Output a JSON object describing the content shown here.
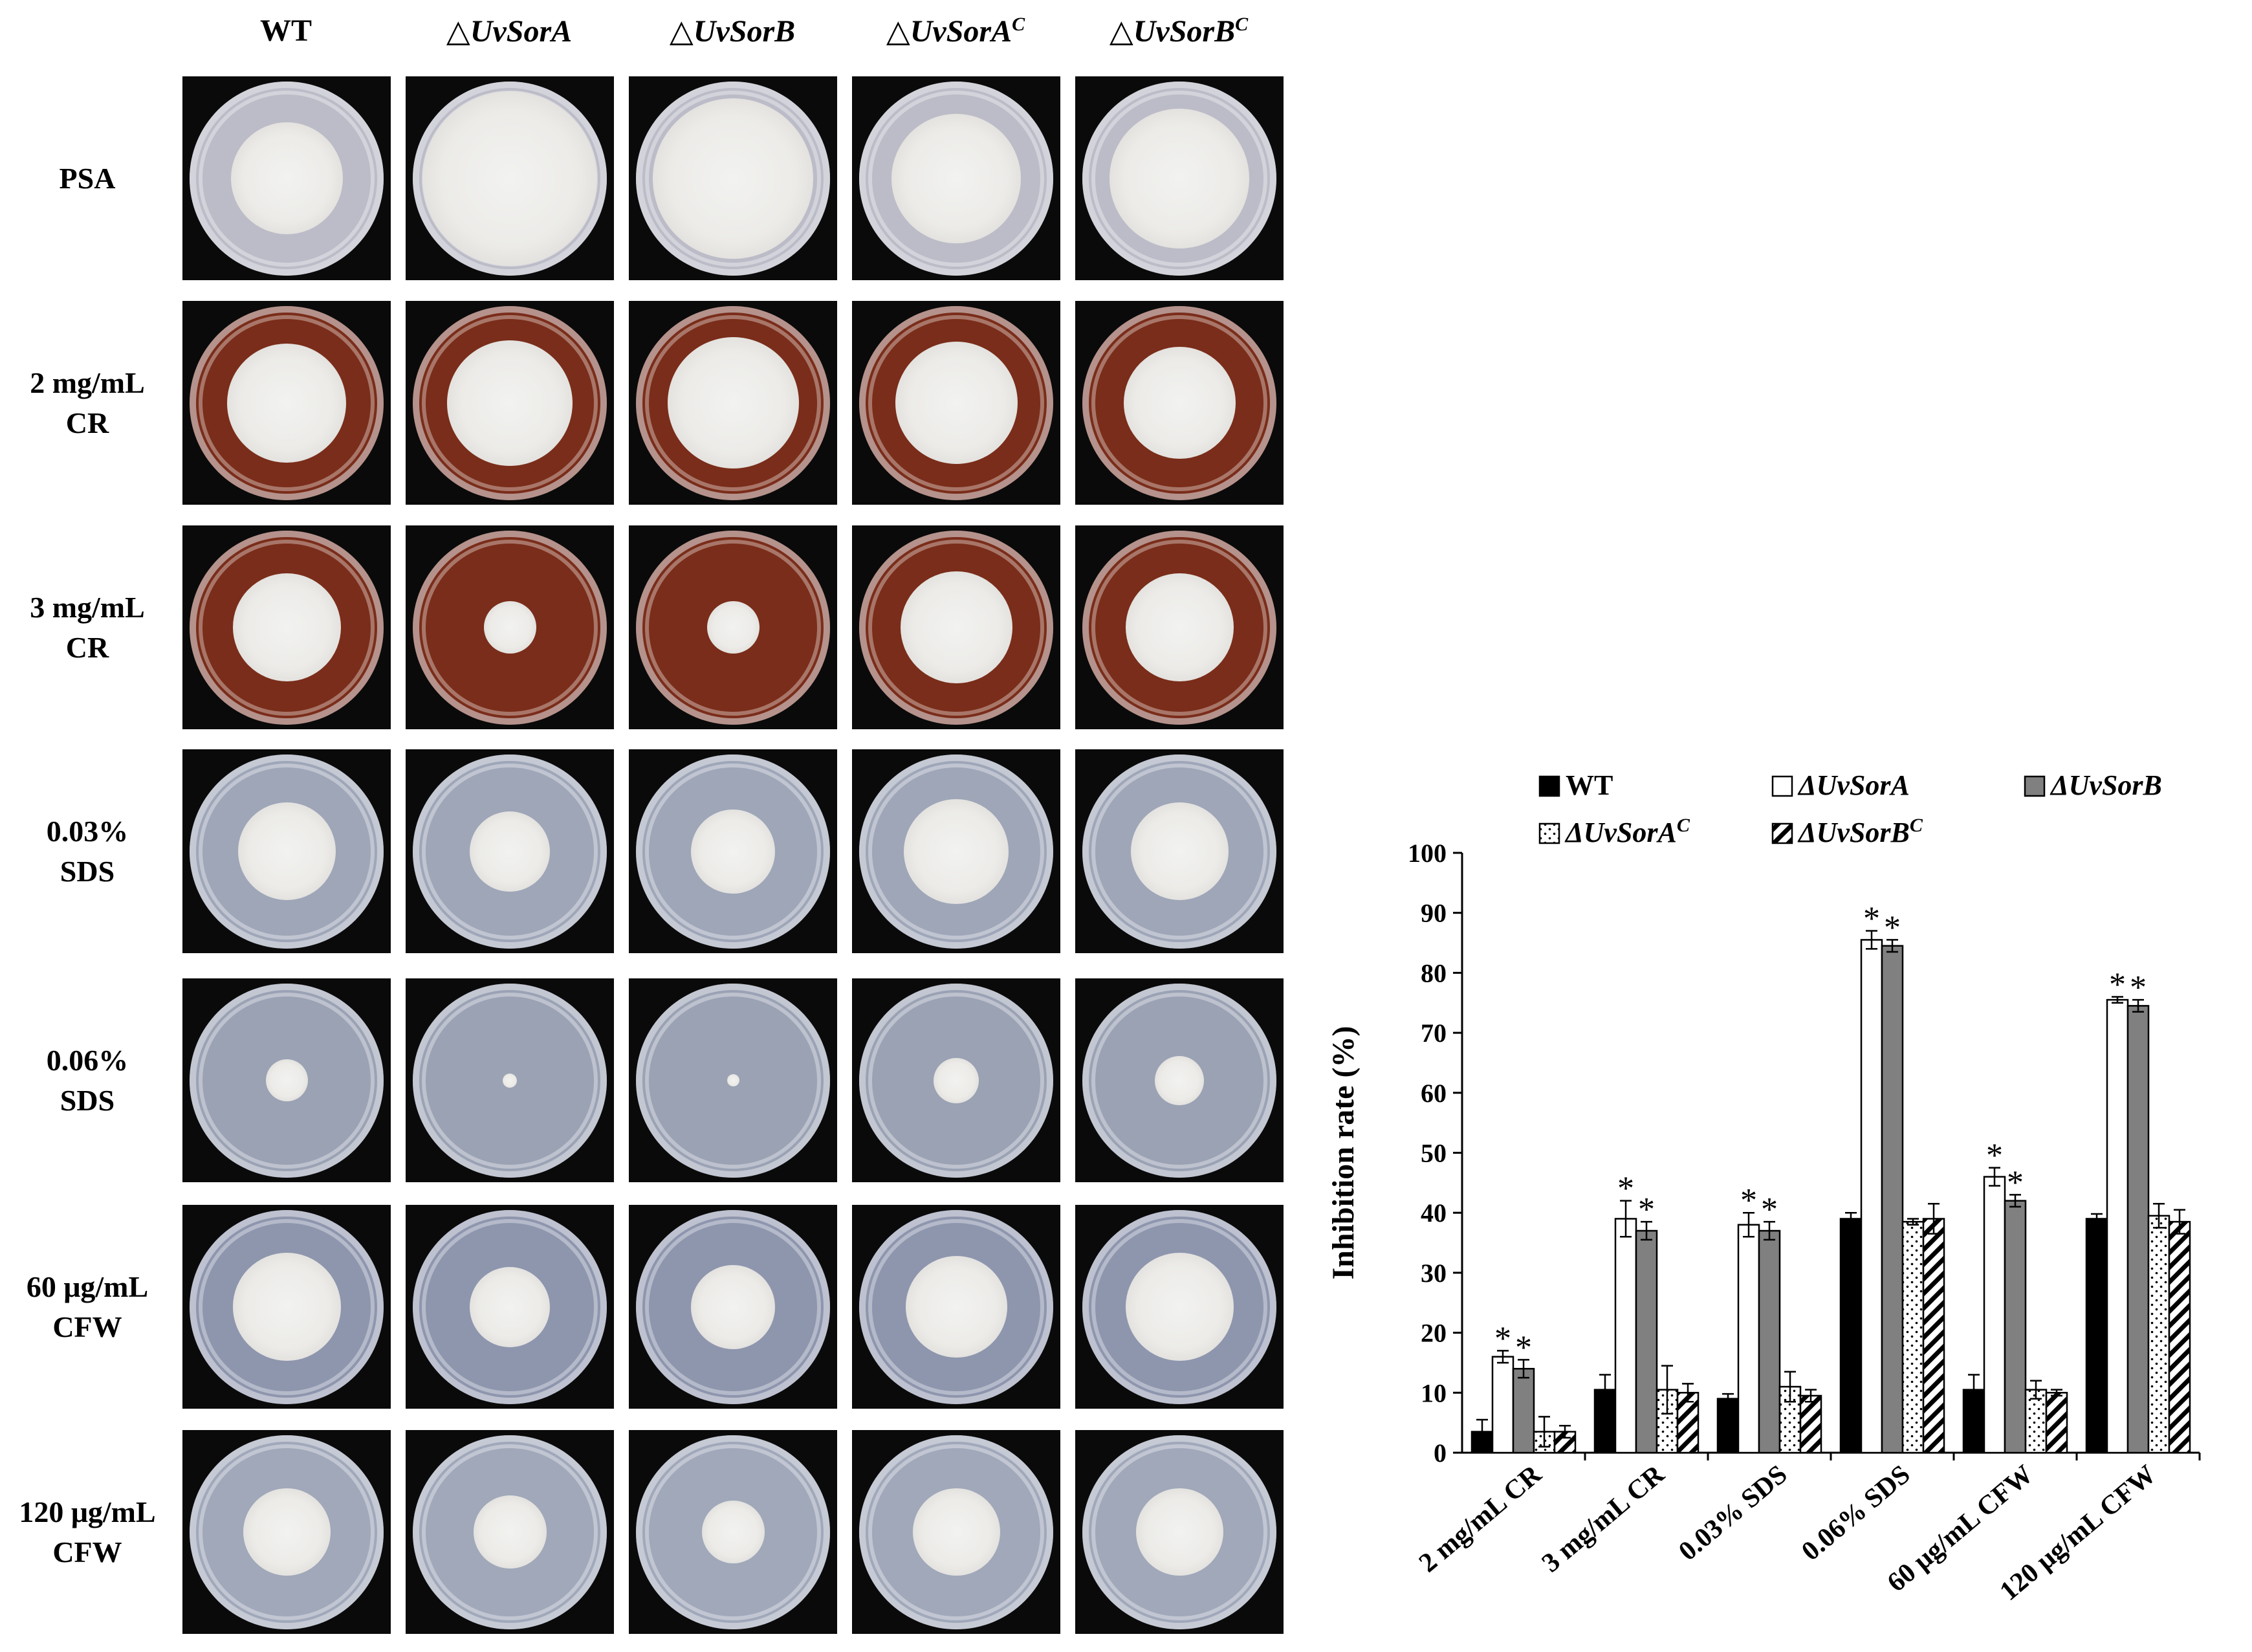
{
  "panel": {
    "columns": [
      {
        "label": "WT",
        "italic": false,
        "sup": ""
      },
      {
        "label": "△UvSorA",
        "italic": true,
        "sup": ""
      },
      {
        "label": "△UvSorB",
        "italic": true,
        "sup": ""
      },
      {
        "label": "△UvSorA",
        "italic": true,
        "sup": "C"
      },
      {
        "label": "△UvSorB",
        "italic": true,
        "sup": "C"
      }
    ],
    "rows": [
      {
        "line1": "PSA",
        "line2": "",
        "medium": "#bcbcc8",
        "colonies": [
          0.64,
          1.0,
          0.92,
          0.74,
          0.8
        ]
      },
      {
        "line1": "2 mg/mL",
        "line2": "CR",
        "medium": "#7a2d1a",
        "colonies": [
          0.68,
          0.72,
          0.75,
          0.7,
          0.64
        ]
      },
      {
        "line1": "3 mg/mL",
        "line2": "CR",
        "medium": "#7a2d1a",
        "colonies": [
          0.62,
          0.3,
          0.3,
          0.64,
          0.62
        ]
      },
      {
        "line1": "0.03%",
        "line2": "SDS",
        "medium": "#9ea6b8",
        "colonies": [
          0.56,
          0.46,
          0.48,
          0.6,
          0.56
        ]
      },
      {
        "line1": "0.06%",
        "line2": "SDS",
        "medium": "#9aa2b4",
        "colonies": [
          0.24,
          0.08,
          0.07,
          0.26,
          0.28
        ]
      },
      {
        "line1": "60 μg/mL",
        "line2": "CFW",
        "medium": "#8e96ae",
        "colonies": [
          0.62,
          0.46,
          0.48,
          0.58,
          0.62
        ]
      },
      {
        "line1": "120 μg/mL",
        "line2": "CFW",
        "medium": "#a0a8ba",
        "colonies": [
          0.5,
          0.42,
          0.36,
          0.5,
          0.5
        ]
      }
    ]
  },
  "chart_data": {
    "type": "bar",
    "title": "",
    "xlabel": "",
    "ylabel": "Inhibition rate (%)",
    "ylim": [
      0,
      100
    ],
    "yticks": [
      0,
      10,
      20,
      30,
      40,
      50,
      60,
      70,
      80,
      90,
      100
    ],
    "categories": [
      "2 mg/mL CR",
      "3 mg/mL CR",
      "0.03% SDS",
      "0.06% SDS",
      "60 μg/mL CFW",
      "120 μg/mL CFW"
    ],
    "series": [
      {
        "name": "WT",
        "sup": "",
        "fill": "#000000",
        "pattern": "solid",
        "values": [
          3.5,
          10.5,
          9.0,
          39.0,
          10.5,
          39.0
        ],
        "errors": [
          2.0,
          2.5,
          0.8,
          1.0,
          2.5,
          0.8
        ]
      },
      {
        "name": "ΔUvSorA",
        "sup": "",
        "fill": "#ffffff",
        "pattern": "solid",
        "values": [
          16.0,
          39.0,
          38.0,
          85.5,
          46.0,
          75.5
        ],
        "errors": [
          1.0,
          3.0,
          2.0,
          1.5,
          1.5,
          0.5
        ]
      },
      {
        "name": "ΔUvSorB",
        "sup": "",
        "fill": "#808080",
        "pattern": "solid",
        "values": [
          14.0,
          37.0,
          37.0,
          84.5,
          42.0,
          74.5
        ],
        "errors": [
          1.5,
          1.5,
          1.5,
          1.0,
          1.0,
          1.0
        ]
      },
      {
        "name": "ΔUvSorA",
        "sup": "C",
        "fill": "#ffffff",
        "pattern": "dots",
        "values": [
          3.5,
          10.5,
          11.0,
          38.5,
          10.5,
          39.5
        ],
        "errors": [
          2.5,
          4.0,
          2.5,
          0.5,
          1.5,
          2.0
        ]
      },
      {
        "name": "ΔUvSorB",
        "sup": "C",
        "fill": "#ffffff",
        "pattern": "hatch",
        "values": [
          3.5,
          10.0,
          9.5,
          39.0,
          10.0,
          38.5
        ],
        "errors": [
          1.0,
          1.5,
          1.0,
          2.5,
          0.5,
          2.0
        ]
      }
    ],
    "significance": {
      "label": "**",
      "series": [
        1,
        2
      ]
    },
    "legend_position": "top"
  }
}
